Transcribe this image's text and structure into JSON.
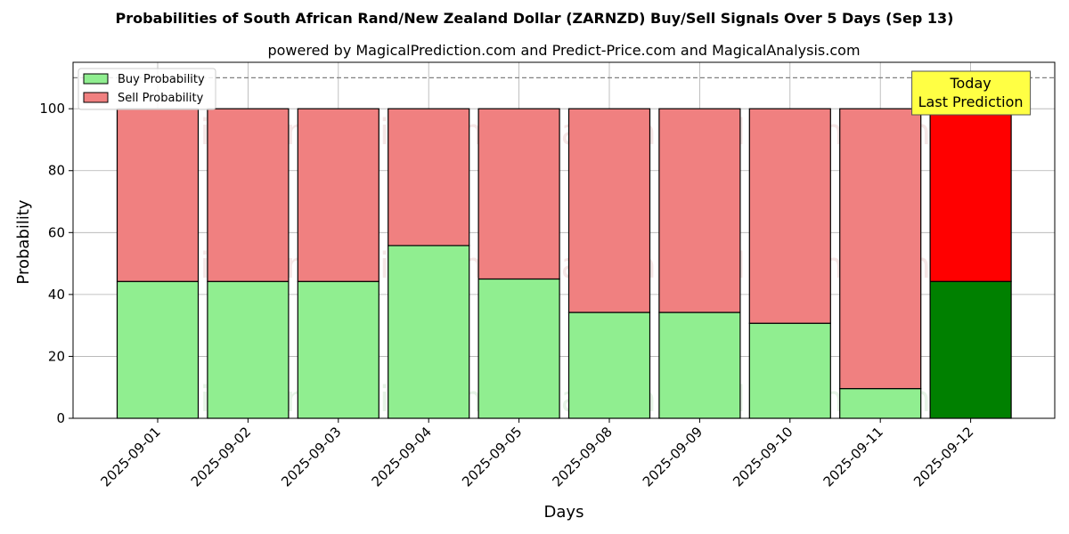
{
  "chart_data": {
    "type": "bar",
    "title": "Probabilities of South African Rand/New Zealand Dollar (ZARNZD) Buy/Sell Signals Over 5 Days (Sep 13)",
    "subtitle": "powered by MagicalPrediction.com and Predict-Price.com and MagicalAnalysis.com",
    "xlabel": "Days",
    "ylabel": "Probability",
    "ylim": [
      0,
      115
    ],
    "yticks": [
      0,
      20,
      40,
      60,
      80,
      100
    ],
    "grid": true,
    "stacked": true,
    "legend_position": "top-left",
    "categories": [
      "2025-09-01",
      "2025-09-02",
      "2025-09-03",
      "2025-09-04",
      "2025-09-05",
      "2025-09-08",
      "2025-09-09",
      "2025-09-10",
      "2025-09-11",
      "2025-09-12"
    ],
    "series": [
      {
        "name": "Buy Probability",
        "values": [
          44.2,
          44.2,
          44.2,
          55.8,
          45.0,
          34.2,
          34.2,
          30.7,
          9.6,
          44.2
        ],
        "color": "#90ee90",
        "highlight_color": "#008000"
      },
      {
        "name": "Sell Probability",
        "values": [
          55.8,
          55.8,
          55.8,
          44.2,
          55.0,
          65.8,
          65.8,
          69.3,
          90.4,
          55.8
        ],
        "color": "#f08080",
        "highlight_color": "#ff0000"
      }
    ],
    "highlight_index": 9,
    "reference_line": {
      "y": 110,
      "style": "dashed",
      "color": "#808080"
    },
    "annotation": {
      "lines": [
        "Today",
        "Last Prediction"
      ],
      "background": "#ffff44"
    },
    "watermarks": [
      "MagicalAnalysis.com",
      "MagicalPrediction.com"
    ]
  }
}
